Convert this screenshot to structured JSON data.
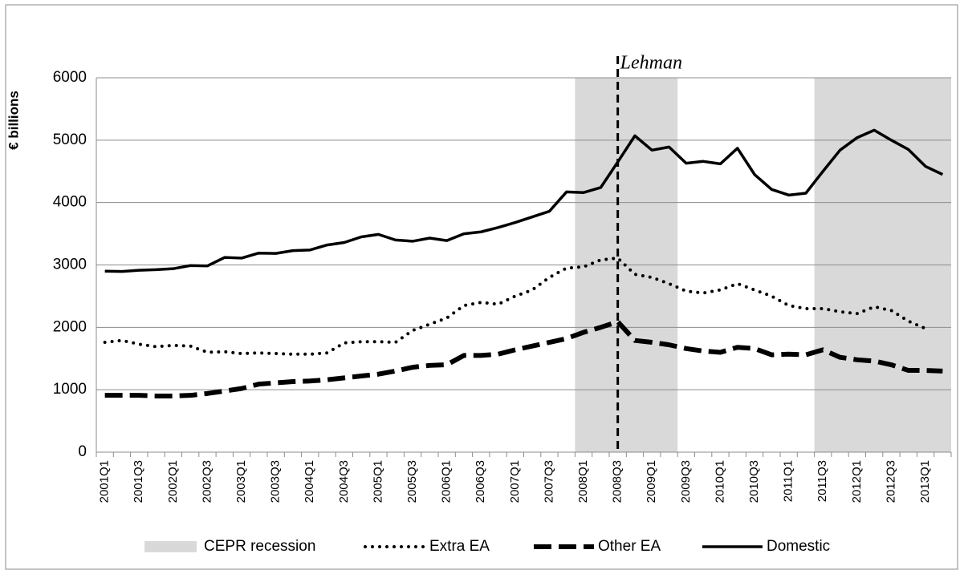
{
  "chart_data": {
    "type": "line",
    "y_label": "€ billions",
    "categories": [
      "2001Q1",
      null,
      "2001Q3",
      null,
      "2002Q1",
      null,
      "2002Q3",
      null,
      "2003Q1",
      null,
      "2003Q3",
      null,
      "2004Q1",
      null,
      "2004Q3",
      null,
      "2005Q1",
      null,
      "2005Q3",
      null,
      "2006Q1",
      null,
      "2006Q3",
      null,
      "2007Q1",
      null,
      "2007Q3",
      null,
      "2008Q1",
      null,
      "2008Q3",
      null,
      "2009Q1",
      null,
      "2009Q3",
      null,
      "2010Q1",
      null,
      "2010Q3",
      null,
      "2011Q1",
      null,
      "2011Q3",
      null,
      "2012Q1",
      null,
      "2012Q3",
      null,
      "2013Q1",
      null
    ],
    "recessions": {
      "name": "CEPR recession",
      "color": "#d9d9d9",
      "ranges": [
        [
          28,
          33
        ],
        [
          42,
          49
        ]
      ]
    },
    "marker_line": {
      "label": "Lehman",
      "index": 30
    },
    "series": [
      {
        "name": "Extra EA",
        "color": "#000000",
        "dash": "dotted",
        "values": [
          1760,
          1790,
          1730,
          1690,
          1710,
          1700,
          1600,
          1610,
          1580,
          1590,
          1580,
          1570,
          1570,
          1590,
          1750,
          1770,
          1770,
          1760,
          1950,
          2050,
          2150,
          2350,
          2400,
          2370,
          2500,
          2600,
          2800,
          2950,
          2970,
          3080,
          3110,
          2850,
          2800,
          2700,
          2580,
          2550,
          2600,
          2700,
          2600,
          2500,
          2350,
          2300,
          2300,
          2250,
          2220,
          2330,
          2270,
          2100,
          1980,
          null
        ]
      },
      {
        "name": "Other EA",
        "color": "#000000",
        "dash": "dashed",
        "values": [
          910,
          910,
          910,
          900,
          900,
          910,
          940,
          980,
          1020,
          1090,
          1110,
          1130,
          1140,
          1160,
          1190,
          1220,
          1250,
          1300,
          1360,
          1390,
          1400,
          1550,
          1550,
          1570,
          1640,
          1700,
          1760,
          1820,
          1920,
          2000,
          2090,
          1790,
          1760,
          1720,
          1660,
          1620,
          1600,
          1680,
          1660,
          1560,
          1570,
          1560,
          1640,
          1520,
          1480,
          1460,
          1400,
          1310,
          1310,
          1300
        ]
      },
      {
        "name": "Domestic",
        "color": "#000000",
        "dash": "solid",
        "values": [
          2900,
          2895,
          2915,
          2925,
          2940,
          2990,
          2985,
          3120,
          3110,
          3190,
          3185,
          3230,
          3240,
          3320,
          3360,
          3450,
          3490,
          3400,
          3380,
          3430,
          3390,
          3500,
          3530,
          3600,
          3680,
          3770,
          3860,
          4170,
          4160,
          4240,
          4650,
          5070,
          4840,
          4890,
          4630,
          4660,
          4620,
          4870,
          4450,
          4210,
          4120,
          4150,
          4500,
          4840,
          5040,
          5160,
          5000,
          4850,
          4580,
          4450
        ]
      }
    ],
    "ylim": [
      0,
      6000
    ],
    "yticks": [
      0,
      1000,
      2000,
      3000,
      4000,
      5000,
      6000
    ],
    "grid": true
  }
}
